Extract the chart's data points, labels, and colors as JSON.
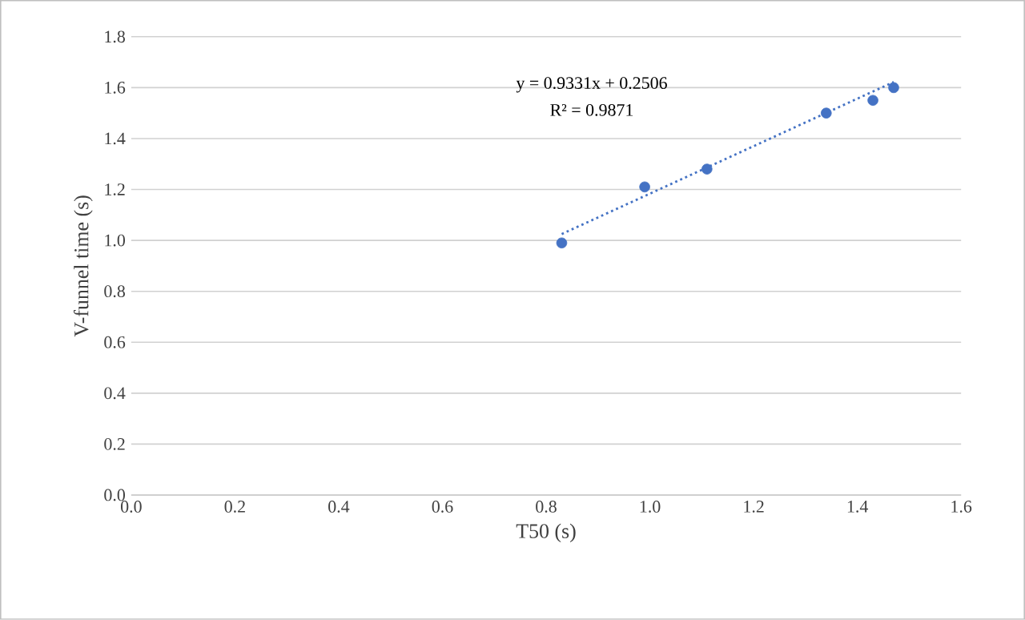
{
  "chart_data": {
    "type": "scatter",
    "xlabel": "T50 (s)",
    "ylabel": "V-funnel time (s)",
    "xlim": [
      0,
      1.6
    ],
    "xticks": [
      {
        "value": 0,
        "label": "0.0"
      },
      {
        "value": 0.2,
        "label": "0.2"
      },
      {
        "value": 0.4,
        "label": "0.4"
      },
      {
        "value": 0.6,
        "label": "0.6"
      },
      {
        "value": 0.8,
        "label": "0.8"
      },
      {
        "value": 1.0,
        "label": "1.0"
      },
      {
        "value": 1.2,
        "label": "1.2"
      },
      {
        "value": 1.4,
        "label": "1.4"
      },
      {
        "value": 1.6,
        "label": "1.6"
      }
    ],
    "ylim": [
      0,
      1.8
    ],
    "yticks": [
      {
        "value": 0,
        "label": "0.0"
      },
      {
        "value": 0.2,
        "label": "0.2"
      },
      {
        "value": 0.4,
        "label": "0.4"
      },
      {
        "value": 0.6,
        "label": "0.6"
      },
      {
        "value": 0.8,
        "label": "0.8"
      },
      {
        "value": 1.0,
        "label": "1.0"
      },
      {
        "value": 1.2,
        "label": "1.2"
      },
      {
        "value": 1.4,
        "label": "1.4"
      },
      {
        "value": 1.6,
        "label": "1.6"
      },
      {
        "value": 1.8,
        "label": "1.8"
      }
    ],
    "grid": "y",
    "series": [
      {
        "color": "#4472c4",
        "marker": "circle",
        "x": [
          0.83,
          0.99,
          1.11,
          1.34,
          1.43,
          1.47
        ],
        "values": [
          0.99,
          1.21,
          1.28,
          1.5,
          1.55,
          1.6
        ]
      },
      {
        "type": "line",
        "color": "#4472c4",
        "marker": "none",
        "line_style": "dotted",
        "x": [
          0.83,
          1.47
        ],
        "values": [
          1.025,
          1.622
        ]
      }
    ],
    "annotations": [
      "y = 0.9331x + 0.2506",
      "R² = 0.9871"
    ]
  }
}
